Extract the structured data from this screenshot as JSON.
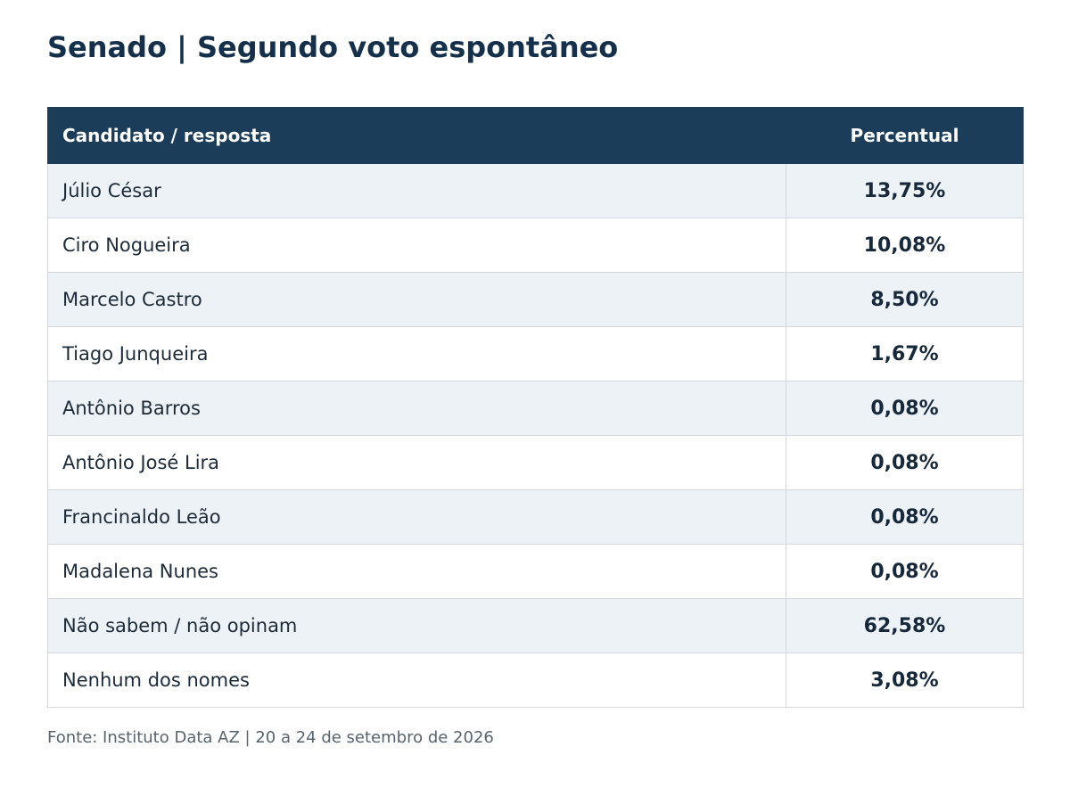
{
  "chart_data": {
    "type": "table",
    "title": "Senado | Segundo voto espontâneo",
    "columns": [
      "Candidato / resposta",
      "Percentual"
    ],
    "rows": [
      {
        "name": "Júlio César",
        "value": 13.75,
        "label": "13,75%"
      },
      {
        "name": "Ciro Nogueira",
        "value": 10.08,
        "label": "10,08%"
      },
      {
        "name": "Marcelo Castro",
        "value": 8.5,
        "label": "8,50%"
      },
      {
        "name": "Tiago Junqueira",
        "value": 1.67,
        "label": "1,67%"
      },
      {
        "name": "Antônio Barros",
        "value": 0.08,
        "label": "0,08%"
      },
      {
        "name": "Antônio José Lira",
        "value": 0.08,
        "label": "0,08%"
      },
      {
        "name": "Francinaldo Leão",
        "value": 0.08,
        "label": "0,08%"
      },
      {
        "name": "Madalena Nunes",
        "value": 0.08,
        "label": "0,08%"
      },
      {
        "name": "Não sabem / não opinam",
        "value": 62.58,
        "label": "62,58%"
      },
      {
        "name": "Nenhum dos nomes",
        "value": 3.08,
        "label": "3,08%"
      }
    ],
    "source": "Fonte: Instituto Data AZ | 20 a 24 de setembro de 2026"
  },
  "colors": {
    "header_bg": "#1b3d5a",
    "title": "#15304a",
    "alt_row": "#edf2f7"
  }
}
